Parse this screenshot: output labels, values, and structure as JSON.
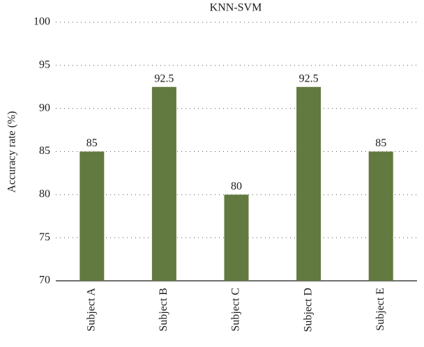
{
  "chart_data": {
    "type": "bar",
    "title": "KNN-SVM",
    "y_label": "Accuracy rate (%)",
    "categories": [
      "Subject A",
      "Subject B",
      "Subject C",
      "Subject D",
      "Subject E"
    ],
    "values": [
      85,
      92.5,
      80,
      92.5,
      85
    ],
    "color": "#627a3f",
    "ylim": [
      70,
      100
    ],
    "yticks": [
      70,
      75,
      80,
      85,
      90,
      95,
      100
    ],
    "grid": true
  }
}
